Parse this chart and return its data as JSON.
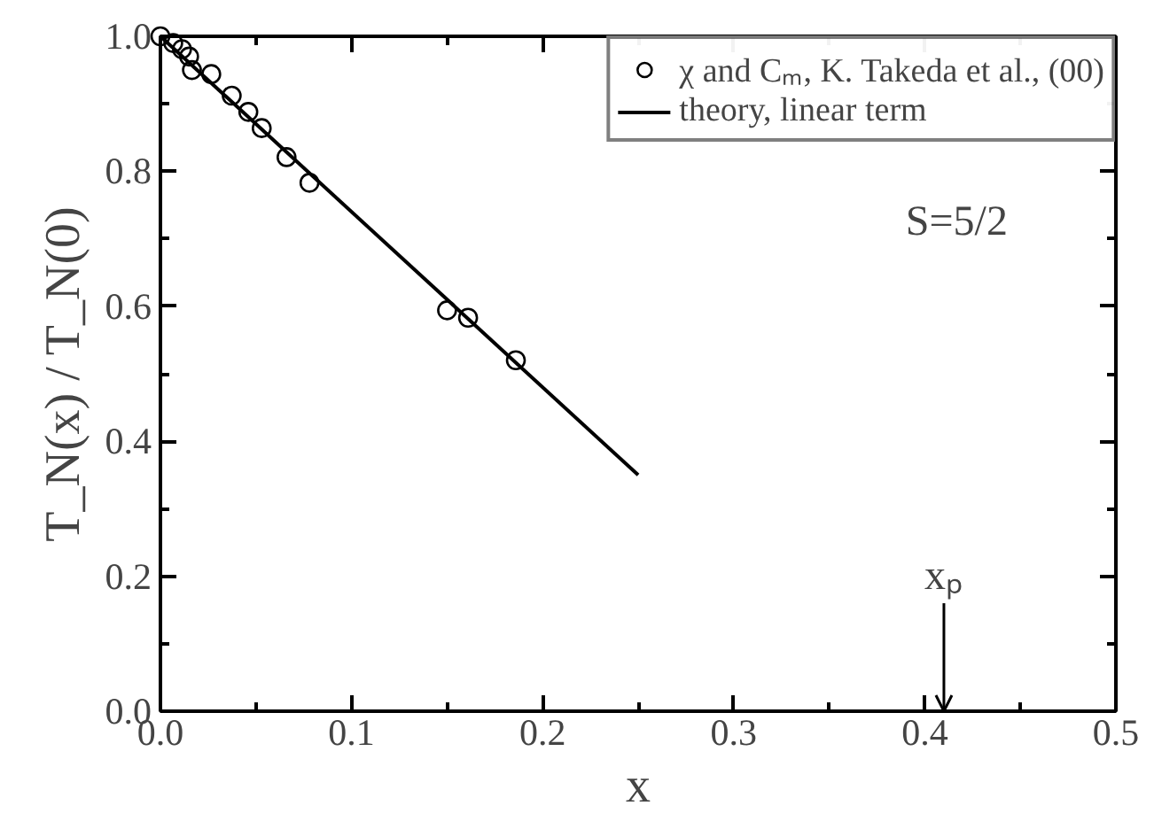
{
  "chart_data": {
    "type": "scatter",
    "xlabel": "x",
    "ylabel": "T_N(x) / T_N(0)",
    "xlim": [
      0,
      0.5
    ],
    "ylim": [
      0,
      1.0
    ],
    "xticks": [
      {
        "value": 0,
        "label": "0.0"
      },
      0.1,
      0.2,
      0.3,
      0.4,
      0.5
    ],
    "yticks": [
      {
        "value": 0,
        "label": "0.0"
      },
      0.2,
      0.4,
      0.6,
      0.8,
      {
        "value": 1,
        "label": "1.0"
      }
    ],
    "grid": false,
    "legend": "top right",
    "series": [
      {
        "name": "χ and Cₘ, K. Takeda et al., (00)",
        "marker": "circle",
        "color": "#000000",
        "x": [
          0.0,
          0.0067,
          0.0113,
          0.015,
          0.0165,
          0.0266,
          0.0373,
          0.046,
          0.053,
          0.066,
          0.078,
          0.15,
          0.161,
          0.186
        ],
        "values": [
          1.0,
          0.99,
          0.981,
          0.97,
          0.95,
          0.944,
          0.912,
          0.888,
          0.864,
          0.821,
          0.783,
          0.594,
          0.583,
          0.52
        ]
      },
      {
        "name": "theory, linear term",
        "type": "line",
        "line_style": "solid",
        "color": "#000000",
        "x": [
          0.0,
          0.25
        ],
        "values": [
          1.0,
          0.35
        ]
      }
    ],
    "annotations": [
      "S=5/2",
      "xₚ"
    ]
  }
}
